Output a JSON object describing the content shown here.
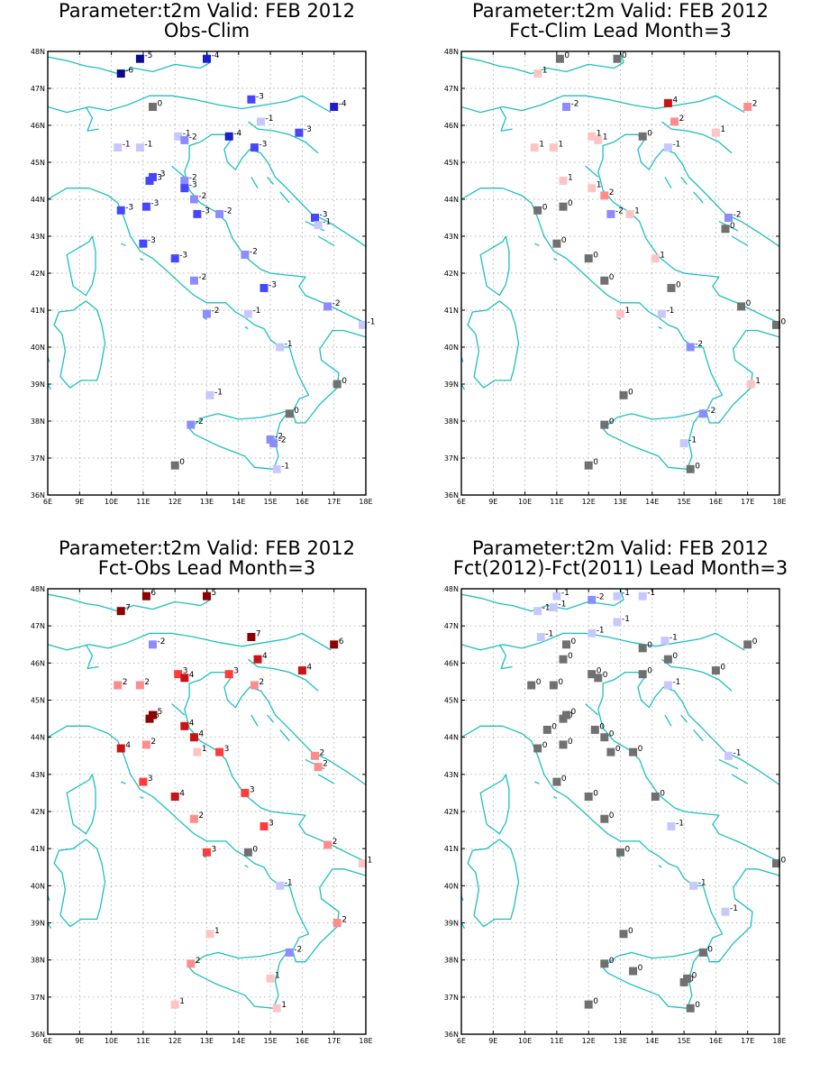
{
  "colors": {
    "coast": "#1fbfbf",
    "neutral": "#707070",
    "neg": [
      "#c8c8ff",
      "#8c8cff",
      "#4646ff",
      "#1e1ecc",
      "#0a0a8c"
    ],
    "pos": [
      "#ffc4c4",
      "#ff8c8c",
      "#ff3c3c",
      "#c81414",
      "#8c0000"
    ]
  },
  "axes": {
    "lon_ticks": [
      "6E",
      "9E",
      "10E",
      "11E",
      "12E",
      "13E",
      "14E",
      "15E",
      "16E",
      "17E",
      "18E"
    ],
    "lat_ticks": [
      "36N",
      "37N",
      "38N",
      "39N",
      "40N",
      "41N",
      "42N",
      "43N",
      "44N",
      "45N",
      "46N",
      "47N",
      "48N"
    ]
  },
  "panels": [
    {
      "title1": "Parameter:t2m Valid: FEB 2012",
      "title2": "Obs-Clim",
      "stations": [
        [
          10.3,
          47.4,
          -6
        ],
        [
          10.9,
          47.8,
          -5
        ],
        [
          13.0,
          47.8,
          -4
        ],
        [
          11.3,
          46.5,
          0
        ],
        [
          14.4,
          46.7,
          -3
        ],
        [
          17.0,
          46.5,
          -4
        ],
        [
          14.7,
          46.1,
          -1
        ],
        [
          12.1,
          45.7,
          -1
        ],
        [
          12.3,
          45.6,
          -2
        ],
        [
          13.7,
          45.7,
          -4
        ],
        [
          14.5,
          45.4,
          -3
        ],
        [
          15.9,
          45.8,
          -3
        ],
        [
          10.2,
          45.4,
          -1
        ],
        [
          10.9,
          45.4,
          -1
        ],
        [
          11.2,
          44.5,
          -3
        ],
        [
          11.3,
          44.6,
          -3
        ],
        [
          12.3,
          44.5,
          -2
        ],
        [
          12.3,
          44.3,
          -3
        ],
        [
          12.6,
          44.0,
          -2
        ],
        [
          10.3,
          43.7,
          -3
        ],
        [
          11.1,
          43.8,
          -3
        ],
        [
          12.7,
          43.6,
          -3
        ],
        [
          13.4,
          43.6,
          -2
        ],
        [
          16.4,
          43.5,
          -3
        ],
        [
          16.5,
          43.3,
          -1
        ],
        [
          11.0,
          42.8,
          -3
        ],
        [
          12.0,
          42.4,
          -3
        ],
        [
          14.2,
          42.5,
          -2
        ],
        [
          12.6,
          41.8,
          -2
        ],
        [
          14.8,
          41.6,
          -3
        ],
        [
          16.8,
          41.1,
          -2
        ],
        [
          13.0,
          40.9,
          -2
        ],
        [
          14.3,
          40.9,
          -1
        ],
        [
          15.3,
          40.0,
          -1
        ],
        [
          17.9,
          40.6,
          -1
        ],
        [
          17.1,
          39.0,
          0
        ],
        [
          13.1,
          38.7,
          -1
        ],
        [
          15.6,
          38.2,
          0
        ],
        [
          12.5,
          37.9,
          -2
        ],
        [
          15.0,
          37.5,
          -2
        ],
        [
          15.1,
          37.4,
          -2
        ],
        [
          12.0,
          36.8,
          0
        ],
        [
          15.2,
          36.7,
          -1
        ]
      ]
    },
    {
      "title1": "Parameter:t2m Valid: FEB 2012",
      "title2": "Fct-Clim Lead Month=3",
      "stations": [
        [
          10.4,
          47.4,
          1
        ],
        [
          11.1,
          47.8,
          0
        ],
        [
          12.9,
          47.8,
          0
        ],
        [
          14.5,
          46.6,
          4
        ],
        [
          11.3,
          46.5,
          -2
        ],
        [
          17.0,
          46.5,
          2
        ],
        [
          14.7,
          46.1,
          2
        ],
        [
          16.0,
          45.8,
          1
        ],
        [
          12.1,
          45.7,
          1
        ],
        [
          12.3,
          45.6,
          1
        ],
        [
          13.7,
          45.7,
          0
        ],
        [
          14.5,
          45.4,
          -1
        ],
        [
          10.3,
          45.4,
          1
        ],
        [
          10.9,
          45.4,
          1
        ],
        [
          11.2,
          44.5,
          1
        ],
        [
          12.1,
          44.3,
          1
        ],
        [
          12.5,
          44.1,
          2
        ],
        [
          10.4,
          43.7,
          0
        ],
        [
          11.2,
          43.8,
          0
        ],
        [
          12.7,
          43.6,
          -2
        ],
        [
          13.3,
          43.6,
          1
        ],
        [
          16.4,
          43.5,
          -2
        ],
        [
          16.3,
          43.2,
          0
        ],
        [
          11.0,
          42.8,
          0
        ],
        [
          12.0,
          42.4,
          0
        ],
        [
          14.1,
          42.4,
          1
        ],
        [
          12.5,
          41.8,
          0
        ],
        [
          14.6,
          41.6,
          0
        ],
        [
          16.8,
          41.1,
          0
        ],
        [
          13.0,
          40.9,
          1
        ],
        [
          14.3,
          40.9,
          -1
        ],
        [
          15.2,
          40.0,
          -2
        ],
        [
          17.9,
          40.6,
          0
        ],
        [
          17.1,
          39.0,
          1
        ],
        [
          13.1,
          38.7,
          0
        ],
        [
          15.6,
          38.2,
          -2
        ],
        [
          12.5,
          37.9,
          0
        ],
        [
          15.0,
          37.4,
          -1
        ],
        [
          12.0,
          36.8,
          0
        ],
        [
          15.2,
          36.7,
          0
        ]
      ]
    },
    {
      "title1": "Parameter:t2m Valid: FEB 2012",
      "title2": "Fct-Obs Lead Month=3",
      "stations": [
        [
          10.3,
          47.4,
          7
        ],
        [
          11.1,
          47.8,
          6
        ],
        [
          13.0,
          47.8,
          5
        ],
        [
          14.4,
          46.7,
          7
        ],
        [
          11.3,
          46.5,
          -2
        ],
        [
          17.0,
          46.5,
          6
        ],
        [
          14.6,
          46.1,
          4
        ],
        [
          16.0,
          45.8,
          4
        ],
        [
          12.1,
          45.7,
          3
        ],
        [
          12.3,
          45.6,
          4
        ],
        [
          13.7,
          45.7,
          3
        ],
        [
          14.5,
          45.4,
          2
        ],
        [
          10.2,
          45.4,
          2
        ],
        [
          10.9,
          45.4,
          2
        ],
        [
          11.2,
          44.5,
          5
        ],
        [
          11.3,
          44.6,
          5
        ],
        [
          12.3,
          44.3,
          4
        ],
        [
          12.6,
          44.0,
          4
        ],
        [
          10.3,
          43.7,
          4
        ],
        [
          11.1,
          43.8,
          2
        ],
        [
          12.7,
          43.6,
          1
        ],
        [
          13.4,
          43.6,
          3
        ],
        [
          16.4,
          43.5,
          2
        ],
        [
          16.5,
          43.2,
          2
        ],
        [
          11.0,
          42.8,
          3
        ],
        [
          12.0,
          42.4,
          4
        ],
        [
          14.2,
          42.5,
          3
        ],
        [
          12.6,
          41.8,
          2
        ],
        [
          14.8,
          41.6,
          3
        ],
        [
          16.8,
          41.1,
          2
        ],
        [
          13.0,
          40.9,
          3
        ],
        [
          14.3,
          40.9,
          0
        ],
        [
          15.3,
          40.0,
          -1
        ],
        [
          17.9,
          40.6,
          1
        ],
        [
          17.1,
          39.0,
          2
        ],
        [
          13.1,
          38.7,
          1
        ],
        [
          15.6,
          38.2,
          -2
        ],
        [
          12.5,
          37.9,
          2
        ],
        [
          15.0,
          37.5,
          1
        ],
        [
          12.0,
          36.8,
          1
        ],
        [
          15.2,
          36.7,
          1
        ]
      ]
    },
    {
      "title1": "Parameter:t2m Valid: FEB 2012",
      "title2": "Fct(2012)-Fct(2011) Lead Month=3",
      "stations": [
        [
          10.4,
          47.4,
          -1
        ],
        [
          10.9,
          47.5,
          -1
        ],
        [
          11.0,
          47.8,
          -1
        ],
        [
          12.1,
          47.7,
          -2
        ],
        [
          12.9,
          47.8,
          -1
        ],
        [
          13.7,
          47.8,
          -1
        ],
        [
          12.9,
          47.1,
          -1
        ],
        [
          10.5,
          46.7,
          -1
        ],
        [
          12.1,
          46.8,
          -1
        ],
        [
          14.4,
          46.6,
          -1
        ],
        [
          11.3,
          46.5,
          0
        ],
        [
          14.5,
          46.1,
          0
        ],
        [
          11.2,
          46.1,
          0
        ],
        [
          13.7,
          46.4,
          0
        ],
        [
          17.0,
          46.5,
          0
        ],
        [
          16.0,
          45.8,
          0
        ],
        [
          10.2,
          45.4,
          0
        ],
        [
          10.9,
          45.4,
          0
        ],
        [
          12.1,
          45.7,
          0
        ],
        [
          12.3,
          45.6,
          0
        ],
        [
          13.7,
          45.7,
          0
        ],
        [
          14.5,
          45.4,
          -1
        ],
        [
          11.2,
          44.5,
          0
        ],
        [
          11.3,
          44.6,
          0
        ],
        [
          10.7,
          44.2,
          0
        ],
        [
          12.2,
          44.2,
          0
        ],
        [
          12.5,
          44.0,
          0
        ],
        [
          10.4,
          43.7,
          0
        ],
        [
          11.2,
          43.8,
          0
        ],
        [
          12.7,
          43.6,
          0
        ],
        [
          13.4,
          43.6,
          0
        ],
        [
          16.4,
          43.5,
          -1
        ],
        [
          11.0,
          42.8,
          0
        ],
        [
          12.0,
          42.4,
          0
        ],
        [
          14.1,
          42.4,
          0
        ],
        [
          12.5,
          41.8,
          0
        ],
        [
          14.6,
          41.6,
          -1
        ],
        [
          13.0,
          40.9,
          0
        ],
        [
          17.9,
          40.6,
          0
        ],
        [
          15.3,
          40.0,
          -1
        ],
        [
          16.3,
          39.3,
          -1
        ],
        [
          13.1,
          38.7,
          0
        ],
        [
          15.6,
          38.2,
          0
        ],
        [
          12.5,
          37.9,
          0
        ],
        [
          13.4,
          37.7,
          0
        ],
        [
          15.0,
          37.4,
          0
        ],
        [
          15.1,
          37.5,
          0
        ],
        [
          12.0,
          36.8,
          0
        ],
        [
          15.2,
          36.7,
          0
        ]
      ]
    }
  ]
}
